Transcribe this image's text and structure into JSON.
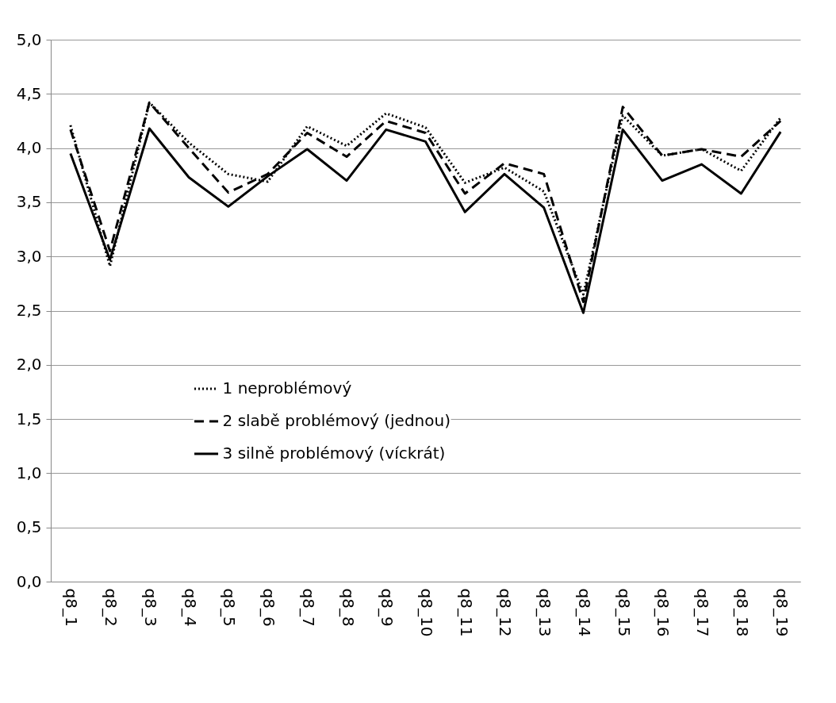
{
  "chart_data": {
    "type": "line",
    "categories": [
      "q8_1",
      "q8_2",
      "q8_3",
      "q8_4",
      "q8_5",
      "q8_6",
      "q8_7",
      "q8_8",
      "q8_9",
      "q8_10",
      "q8_11",
      "q8_12",
      "q8_13",
      "q8_14",
      "q8_15",
      "q8_16",
      "q8_17",
      "q8_18",
      "q8_19"
    ],
    "ylim": [
      0,
      5
    ],
    "yticks": [
      {
        "value": 0,
        "label": "0,0"
      },
      {
        "value": 0.5,
        "label": "0,5"
      },
      {
        "value": 1,
        "label": "1,0"
      },
      {
        "value": 1.5,
        "label": "1,5"
      },
      {
        "value": 2,
        "label": "2,0"
      },
      {
        "value": 2.5,
        "label": "2,5"
      },
      {
        "value": 3,
        "label": "3,0"
      },
      {
        "value": 3.5,
        "label": "3,5"
      },
      {
        "value": 4,
        "label": "4,0"
      },
      {
        "value": 4.5,
        "label": "4,5"
      },
      {
        "value": 5,
        "label": "5,0"
      }
    ],
    "grid": "y",
    "legend": "bottom",
    "marker": "none",
    "series": [
      {
        "name": "1 neproblémový",
        "color": "#000000",
        "line_style": "dotted",
        "values": [
          4.21,
          2.91,
          4.42,
          4.05,
          3.76,
          3.69,
          4.2,
          4.02,
          4.32,
          4.19,
          3.68,
          3.82,
          3.6,
          2.65,
          4.3,
          3.93,
          3.99,
          3.79,
          4.28
        ]
      },
      {
        "name": "2 slabě problémový (jednou)",
        "color": "#000000",
        "line_style": "dashed",
        "values": [
          4.17,
          3.05,
          4.42,
          4.0,
          3.59,
          3.76,
          4.14,
          3.92,
          4.25,
          4.14,
          3.58,
          3.86,
          3.76,
          2.58,
          4.38,
          3.93,
          3.99,
          3.92,
          4.25
        ]
      },
      {
        "name": "3 silně problémový (víckrát)",
        "color": "#000000",
        "line_style": "solid",
        "values": [
          3.95,
          2.97,
          4.18,
          3.73,
          3.46,
          3.74,
          3.99,
          3.7,
          4.17,
          4.06,
          3.41,
          3.76,
          3.45,
          2.48,
          4.17,
          3.7,
          3.85,
          3.58,
          4.15
        ]
      }
    ]
  }
}
